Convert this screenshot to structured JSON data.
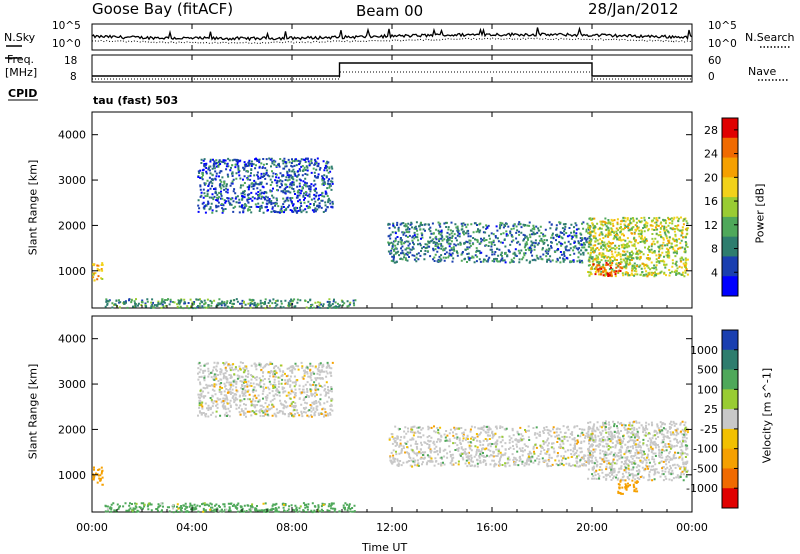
{
  "header": {
    "station": "Goose Bay (fitACF)",
    "beam": "Beam 00",
    "date": "28/Jan/2012"
  },
  "noise_panel": {
    "left_label": "N.Sky",
    "right_label": "N.Search",
    "tick_top": "10^5",
    "tick_bottom": "10^0"
  },
  "freq_panel": {
    "left_label_1": "Freq.",
    "left_label_2": "[MHz]",
    "left_ticks": [
      "18",
      "8"
    ],
    "right_ticks": [
      "60",
      "0"
    ],
    "right_label": "Nave",
    "cpid_label": "CPID",
    "cpid_value": "tau (fast) 503"
  },
  "colors": {
    "power_scale": [
      "#0000ff",
      "#1a3fb0",
      "#2e7d6e",
      "#4fa85a",
      "#99cc33",
      "#f2d21a",
      "#f5a000",
      "#f06a00",
      "#e00000"
    ],
    "velocity_scale": [
      "#1a3fb0",
      "#2e7d6e",
      "#4fa85a",
      "#99cc33",
      "#c8c8c8",
      "#f2c000",
      "#f5a000",
      "#f06a00",
      "#e00000"
    ]
  },
  "chart_data": [
    {
      "type": "heatmap",
      "title": "Power",
      "ylabel": "Slant Range [km]",
      "xlabel": "",
      "ylim": [
        180,
        4500
      ],
      "xlim": [
        0,
        24
      ],
      "y_ticks": [
        "1000",
        "2000",
        "3000",
        "4000"
      ],
      "y_tick_values": [
        1000,
        2000,
        3000,
        4000
      ],
      "colorbar": {
        "label": "Power [dB]",
        "ticks": [
          "4",
          "8",
          "12",
          "16",
          "20",
          "24",
          "28"
        ],
        "range": [
          0,
          30
        ]
      },
      "echo_regions": [
        {
          "t_start": 4.2,
          "t_end": 9.6,
          "r_start": 2300,
          "r_end": 3500,
          "dominant_db": 6
        },
        {
          "t_start": 11.8,
          "t_end": 20.0,
          "r_start": 1200,
          "r_end": 2100,
          "dominant_db": 8
        },
        {
          "t_start": 19.8,
          "t_end": 23.8,
          "r_start": 900,
          "r_end": 2200,
          "dominant_db": 16
        },
        {
          "t_start": 20.0,
          "t_end": 21.2,
          "r_start": 900,
          "r_end": 1200,
          "dominant_db": 24
        },
        {
          "t_start": 0.0,
          "t_end": 0.4,
          "r_start": 800,
          "r_end": 1200,
          "dominant_db": 20
        },
        {
          "t_start": 0.5,
          "t_end": 10.5,
          "r_start": 200,
          "r_end": 400,
          "dominant_db": 10
        }
      ]
    },
    {
      "type": "heatmap",
      "title": "Velocity",
      "ylabel": "Slant Range [km]",
      "xlabel": "Time UT",
      "ylim": [
        180,
        4500
      ],
      "xlim": [
        0,
        24
      ],
      "x_ticks": [
        "00:00",
        "04:00",
        "08:00",
        "12:00",
        "16:00",
        "20:00",
        "00:00"
      ],
      "x_tick_values": [
        0,
        4,
        8,
        12,
        16,
        20,
        24
      ],
      "y_ticks": [
        "1000",
        "2000",
        "3000",
        "4000"
      ],
      "y_tick_values": [
        1000,
        2000,
        3000,
        4000
      ],
      "colorbar": {
        "label": "Velocity [m s^-1]",
        "ticks": [
          "1000",
          "500",
          "100",
          "25",
          "-25",
          "-100",
          "-500",
          "-1000"
        ]
      },
      "echo_regions": [
        {
          "t_start": 4.2,
          "t_end": 9.6,
          "r_start": 2300,
          "r_end": 3500,
          "dominant_ms": 0
        },
        {
          "t_start": 11.8,
          "t_end": 20.0,
          "r_start": 1200,
          "r_end": 2100,
          "dominant_ms": 0
        },
        {
          "t_start": 19.8,
          "t_end": 23.8,
          "r_start": 900,
          "r_end": 2200,
          "dominant_ms": 0
        },
        {
          "t_start": 0.0,
          "t_end": 0.4,
          "r_start": 800,
          "r_end": 1200,
          "dominant_ms": -300
        },
        {
          "t_start": 0.5,
          "t_end": 10.5,
          "r_start": 200,
          "r_end": 400,
          "dominant_ms": 150
        },
        {
          "t_start": 21.0,
          "t_end": 21.8,
          "r_start": 600,
          "r_end": 900,
          "dominant_ms": -300
        }
      ]
    }
  ]
}
